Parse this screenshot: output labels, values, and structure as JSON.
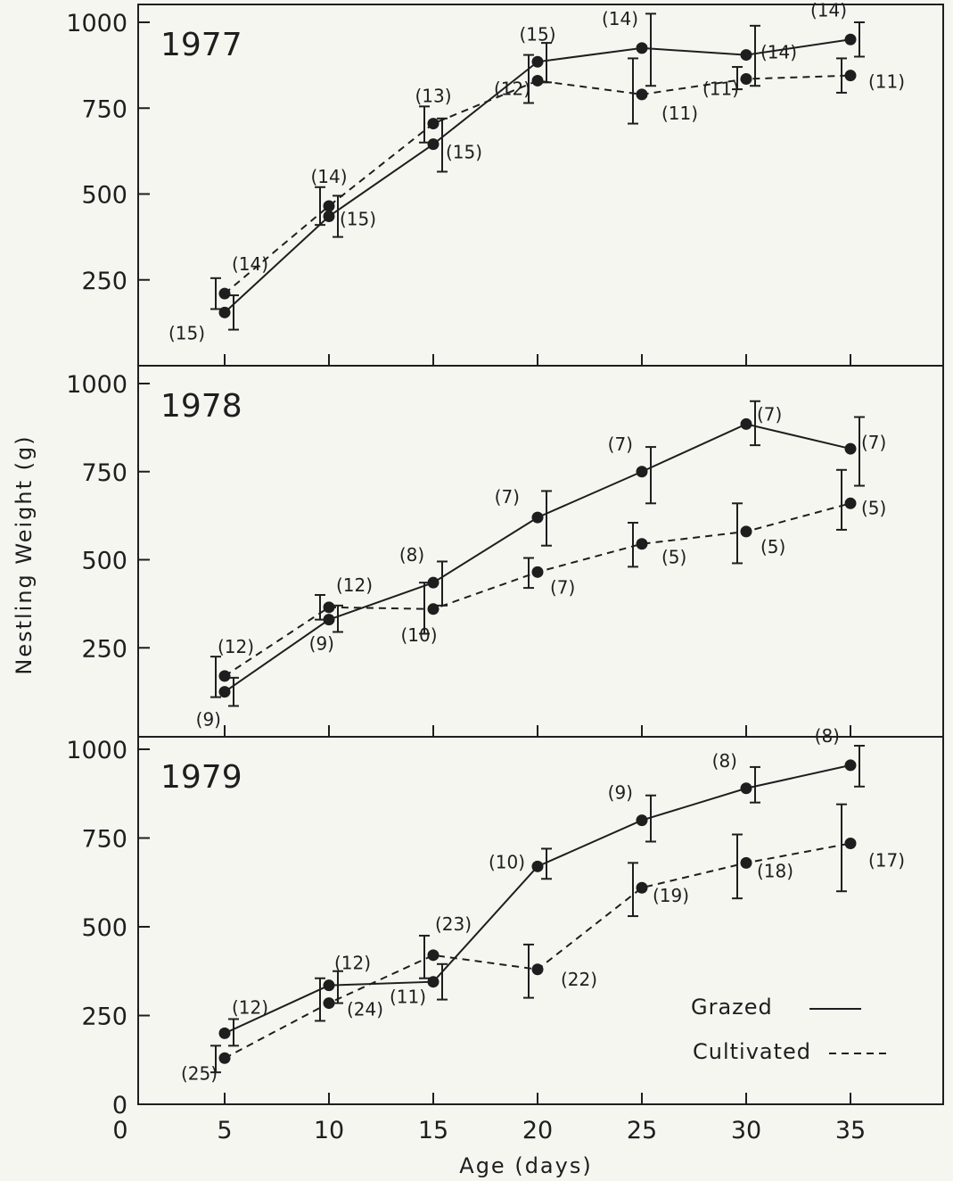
{
  "chart_data": {
    "type": "line",
    "xlabel": "Age (days)",
    "ylabel": "Nestling Weight (g)",
    "x_ticks": [
      0,
      5,
      10,
      15,
      20,
      25,
      30,
      35
    ],
    "y_ticks": [
      250,
      500,
      750,
      1000
    ],
    "y_ticks_bottom": [
      0,
      250,
      500,
      750,
      1000
    ],
    "xlim": [
      0,
      39
    ],
    "ylim": [
      0,
      1040
    ],
    "grid": false,
    "legend": {
      "placement": "bottom-right of 1979 panel",
      "entries": [
        {
          "label": "Grazed",
          "style": "solid"
        },
        {
          "label": "Cultivated",
          "style": "dashed"
        }
      ]
    },
    "panels": [
      {
        "year": "1977",
        "series": [
          {
            "name": "Grazed",
            "style": "solid",
            "points": [
              {
                "x": 5,
                "y": 155,
                "lo": 105,
                "hi": 205,
                "n": "(15)"
              },
              {
                "x": 10,
                "y": 435,
                "lo": 375,
                "hi": 495,
                "n": "(15)"
              },
              {
                "x": 15,
                "y": 645,
                "lo": 565,
                "hi": 720,
                "n": "(15)"
              },
              {
                "x": 20,
                "y": 885,
                "lo": 825,
                "hi": 940,
                "n": "(15)"
              },
              {
                "x": 25,
                "y": 925,
                "lo": 815,
                "hi": 1025,
                "n": "(14)"
              },
              {
                "x": 30,
                "y": 905,
                "lo": 815,
                "hi": 990,
                "n": "(14)"
              },
              {
                "x": 35,
                "y": 950,
                "lo": 900,
                "hi": 1000,
                "n": "(14)"
              }
            ]
          },
          {
            "name": "Cultivated",
            "style": "dashed",
            "points": [
              {
                "x": 5,
                "y": 210,
                "lo": 165,
                "hi": 255,
                "n": "(14)"
              },
              {
                "x": 10,
                "y": 465,
                "lo": 410,
                "hi": 520,
                "n": "(14)"
              },
              {
                "x": 15,
                "y": 705,
                "lo": 650,
                "hi": 755,
                "n": "(13)"
              },
              {
                "x": 20,
                "y": 830,
                "lo": 765,
                "hi": 905,
                "n": "(12)"
              },
              {
                "x": 25,
                "y": 790,
                "lo": 705,
                "hi": 895,
                "n": "(11)"
              },
              {
                "x": 30,
                "y": 835,
                "lo": 805,
                "hi": 870,
                "n": "(11)"
              },
              {
                "x": 35,
                "y": 845,
                "lo": 795,
                "hi": 895,
                "n": "(11)"
              }
            ]
          }
        ]
      },
      {
        "year": "1978",
        "series": [
          {
            "name": "Grazed",
            "style": "solid",
            "points": [
              {
                "x": 5,
                "y": 125,
                "lo": 85,
                "hi": 165,
                "n": "(9)"
              },
              {
                "x": 10,
                "y": 330,
                "lo": 295,
                "hi": 370,
                "n": "(9)"
              },
              {
                "x": 15,
                "y": 435,
                "lo": 370,
                "hi": 495,
                "n": "(8)"
              },
              {
                "x": 20,
                "y": 620,
                "lo": 540,
                "hi": 695,
                "n": "(7)"
              },
              {
                "x": 25,
                "y": 750,
                "lo": 660,
                "hi": 820,
                "n": "(7)"
              },
              {
                "x": 30,
                "y": 885,
                "lo": 825,
                "hi": 950,
                "n": "(7)"
              },
              {
                "x": 35,
                "y": 815,
                "lo": 710,
                "hi": 905,
                "n": "(7)"
              }
            ]
          },
          {
            "name": "Cultivated",
            "style": "dashed",
            "points": [
              {
                "x": 5,
                "y": 170,
                "lo": 110,
                "hi": 225,
                "n": "(12)"
              },
              {
                "x": 10,
                "y": 365,
                "lo": 330,
                "hi": 400,
                "n": "(12)"
              },
              {
                "x": 15,
                "y": 360,
                "lo": 290,
                "hi": 435,
                "n": "(10)"
              },
              {
                "x": 20,
                "y": 465,
                "lo": 420,
                "hi": 505,
                "n": "(7)"
              },
              {
                "x": 25,
                "y": 545,
                "lo": 480,
                "hi": 605,
                "n": "(5)"
              },
              {
                "x": 30,
                "y": 580,
                "lo": 490,
                "hi": 660,
                "n": "(5)"
              },
              {
                "x": 35,
                "y": 660,
                "lo": 585,
                "hi": 755,
                "n": "(5)"
              }
            ]
          }
        ]
      },
      {
        "year": "1979",
        "series": [
          {
            "name": "Grazed",
            "style": "solid",
            "points": [
              {
                "x": 5,
                "y": 200,
                "lo": 165,
                "hi": 240,
                "n": "(12)"
              },
              {
                "x": 10,
                "y": 335,
                "lo": 285,
                "hi": 375,
                "n": "(12)"
              },
              {
                "x": 15,
                "y": 345,
                "lo": 295,
                "hi": 395,
                "n": "(11)"
              },
              {
                "x": 20,
                "y": 670,
                "lo": 635,
                "hi": 720,
                "n": "(10)"
              },
              {
                "x": 25,
                "y": 800,
                "lo": 740,
                "hi": 870,
                "n": "(9)"
              },
              {
                "x": 30,
                "y": 890,
                "lo": 850,
                "hi": 950,
                "n": "(8)"
              },
              {
                "x": 35,
                "y": 955,
                "lo": 895,
                "hi": 1010,
                "n": "(8)"
              }
            ]
          },
          {
            "name": "Cultivated",
            "style": "dashed",
            "points": [
              {
                "x": 5,
                "y": 130,
                "lo": 90,
                "hi": 165,
                "n": "(25)"
              },
              {
                "x": 10,
                "y": 285,
                "lo": 235,
                "hi": 355,
                "n": "(24)"
              },
              {
                "x": 15,
                "y": 420,
                "lo": 355,
                "hi": 475,
                "n": "(23)"
              },
              {
                "x": 20,
                "y": 380,
                "lo": 300,
                "hi": 450,
                "n": "(22)"
              },
              {
                "x": 25,
                "y": 610,
                "lo": 530,
                "hi": 680,
                "n": "(19)"
              },
              {
                "x": 30,
                "y": 680,
                "lo": 580,
                "hi": 760,
                "n": "(18)"
              },
              {
                "x": 35,
                "y": 735,
                "lo": 600,
                "hi": 845,
                "n": "(17)"
              }
            ]
          }
        ]
      }
    ]
  }
}
